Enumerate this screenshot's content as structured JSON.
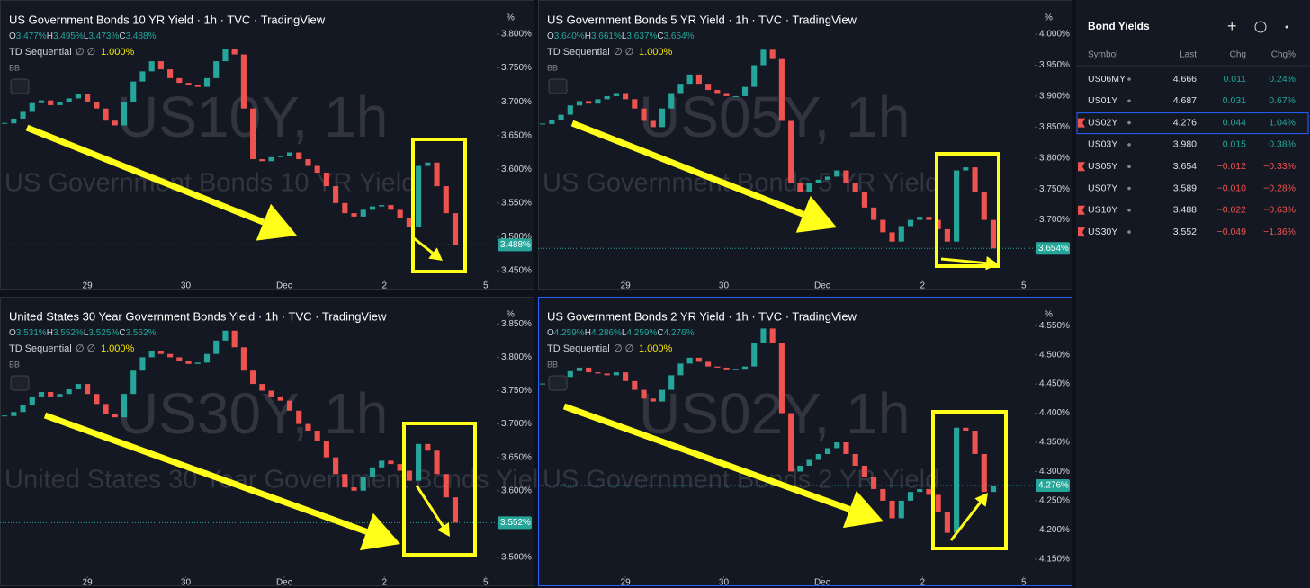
{
  "chart_data": [
    {
      "type": "candlestick",
      "title": "US Government Bonds 10 YR Yield · 1h · TVC · TradingView",
      "ohlc": [
        {
          "key": "O",
          "text": "3.477%"
        },
        {
          "key": "H",
          "text": "3.495%"
        },
        {
          "key": "L",
          "text": "3.473%"
        },
        {
          "key": "C",
          "text": "3.488%"
        }
      ],
      "indicator": "TD Sequential",
      "indicator_value": "1.000%",
      "bb": "BB",
      "unit": "%",
      "watermark": "US10Y, 1h",
      "description": "US Government Bonds 10 YR Yield",
      "last_label": "3.488%",
      "up_color": "#26a69a",
      "down_color": "#ef5350",
      "values": [
        3.668,
        3.675,
        3.685,
        3.698,
        3.702,
        3.695,
        3.7,
        3.705,
        3.712,
        3.7,
        3.69,
        3.672,
        3.665,
        3.7,
        3.73,
        3.745,
        3.76,
        3.748,
        3.735,
        3.728,
        3.725,
        3.722,
        3.735,
        3.76,
        3.778,
        3.77,
        3.69,
        3.615,
        3.612,
        3.618,
        3.62,
        3.625,
        3.615,
        3.605,
        3.595,
        3.575,
        3.55,
        3.535,
        3.53,
        3.54,
        3.545,
        3.547,
        3.54,
        3.528,
        3.515,
        3.605,
        3.61,
        3.575,
        3.535,
        3.488
      ],
      "xlim": [
        -0.5,
        53.5
      ],
      "xticks": [
        {
          "value": 9,
          "label": "29"
        },
        {
          "value": 19.7,
          "label": "30"
        },
        {
          "value": 30.4,
          "label": "Dec"
        },
        {
          "value": 41.3,
          "label": "2"
        },
        {
          "value": 52.3,
          "label": "5"
        }
      ],
      "ylim": [
        3.438,
        3.832
      ],
      "yticks": [
        {
          "value": 3.45,
          "label": "3.450%"
        },
        {
          "value": 3.5,
          "label": "3.500%"
        },
        {
          "value": 3.55,
          "label": "3.550%"
        },
        {
          "value": 3.6,
          "label": "3.600%"
        },
        {
          "value": 3.65,
          "label": "3.650%"
        },
        {
          "value": 3.7,
          "label": "3.700%"
        },
        {
          "value": 3.75,
          "label": "3.750%"
        },
        {
          "value": 3.8,
          "label": "3.800%"
        }
      ]
    },
    {
      "type": "candlestick",
      "title": "US Government Bonds 5 YR Yield · 1h · TVC · TradingView",
      "ohlc": [
        {
          "key": "O",
          "text": "3.640%"
        },
        {
          "key": "H",
          "text": "3.661%"
        },
        {
          "key": "L",
          "text": "3.637%"
        },
        {
          "key": "C",
          "text": "3.654%"
        }
      ],
      "indicator": "TD Sequential",
      "indicator_value": "1.000%",
      "bb": "BB",
      "unit": "%",
      "watermark": "US05Y, 1h",
      "description": "US Government Bonds 5 YR Yield",
      "last_label": "3.654%",
      "up_color": "#26a69a",
      "down_color": "#ef5350",
      "values": [
        3.855,
        3.862,
        3.87,
        3.885,
        3.892,
        3.888,
        3.895,
        3.9,
        3.905,
        3.895,
        3.88,
        3.86,
        3.85,
        3.88,
        3.905,
        3.92,
        3.935,
        3.92,
        3.91,
        3.905,
        3.9,
        3.9,
        3.915,
        3.95,
        3.975,
        3.96,
        3.86,
        3.76,
        3.745,
        3.76,
        3.765,
        3.77,
        3.78,
        3.76,
        3.745,
        3.72,
        3.7,
        3.68,
        3.665,
        3.69,
        3.7,
        3.705,
        3.7,
        3.685,
        3.665,
        3.78,
        3.785,
        3.745,
        3.7,
        3.654
      ],
      "xlim": [
        -0.5,
        53.5
      ],
      "xticks": [
        {
          "value": 9,
          "label": "29"
        },
        {
          "value": 19.7,
          "label": "30"
        },
        {
          "value": 30.4,
          "label": "Dec"
        },
        {
          "value": 41.3,
          "label": "2"
        },
        {
          "value": 52.3,
          "label": "5"
        }
      ],
      "ylim": [
        3.605,
        4.035
      ],
      "yticks": [
        {
          "value": 3.65,
          "label": "3.650%"
        },
        {
          "value": 3.7,
          "label": "3.700%"
        },
        {
          "value": 3.75,
          "label": "3.750%"
        },
        {
          "value": 3.8,
          "label": "3.800%"
        },
        {
          "value": 3.85,
          "label": "3.850%"
        },
        {
          "value": 3.9,
          "label": "3.900%"
        },
        {
          "value": 3.95,
          "label": "3.950%"
        },
        {
          "value": 4,
          "label": "4.000%"
        }
      ]
    },
    {
      "type": "candlestick",
      "title": "United States 30 Year Government Bonds Yield · 1h · TVC · TradingView",
      "ohlc": [
        {
          "key": "O",
          "text": "3.531%"
        },
        {
          "key": "H",
          "text": "3.552%"
        },
        {
          "key": "L",
          "text": "3.525%"
        },
        {
          "key": "C",
          "text": "3.552%"
        }
      ],
      "indicator": "TD Sequential",
      "indicator_value": "1.000%",
      "bb": "BB",
      "unit": "%",
      "watermark": "US30Y, 1h",
      "description": "United States 30 Year Government Bonds Yield",
      "last_label": "3.552%",
      "up_color": "#26a69a",
      "down_color": "#ef5350",
      "values": [
        3.712,
        3.718,
        3.728,
        3.74,
        3.748,
        3.74,
        3.745,
        3.752,
        3.76,
        3.745,
        3.73,
        3.715,
        3.71,
        3.745,
        3.78,
        3.8,
        3.81,
        3.805,
        3.8,
        3.795,
        3.79,
        3.792,
        3.805,
        3.825,
        3.84,
        3.815,
        3.78,
        3.76,
        3.75,
        3.74,
        3.735,
        3.72,
        3.7,
        3.69,
        3.675,
        3.65,
        3.625,
        3.605,
        3.6,
        3.62,
        3.635,
        3.645,
        3.64,
        3.63,
        3.615,
        3.67,
        3.66,
        3.625,
        3.59,
        3.552
      ],
      "xlim": [
        -0.5,
        53.5
      ],
      "xticks": [
        {
          "value": 9,
          "label": "29"
        },
        {
          "value": 19.7,
          "label": "30"
        },
        {
          "value": 30.4,
          "label": "Dec"
        },
        {
          "value": 41.3,
          "label": "2"
        },
        {
          "value": 52.3,
          "label": "5"
        }
      ],
      "ylim": [
        3.473,
        3.872
      ],
      "yticks": [
        {
          "value": 3.5,
          "label": "3.500%"
        },
        {
          "value": 3.55,
          "label": "3.550%"
        },
        {
          "value": 3.6,
          "label": "3.600%"
        },
        {
          "value": 3.65,
          "label": "3.650%"
        },
        {
          "value": 3.7,
          "label": "3.700%"
        },
        {
          "value": 3.75,
          "label": "3.750%"
        },
        {
          "value": 3.8,
          "label": "3.800%"
        },
        {
          "value": 3.85,
          "label": "3.850%"
        }
      ]
    },
    {
      "type": "candlestick",
      "title": "US Government Bonds 2 YR Yield · 1h · TVC · TradingView",
      "ohlc": [
        {
          "key": "O",
          "text": "4.259%"
        },
        {
          "key": "H",
          "text": "4.286%"
        },
        {
          "key": "L",
          "text": "4.259%"
        },
        {
          "key": "C",
          "text": "4.276%"
        }
      ],
      "indicator": "TD Sequential",
      "indicator_value": "1.000%",
      "bb": "BB",
      "unit": "%",
      "watermark": "US02Y, 1h",
      "description": "US Government Bonds 2 YR Yield",
      "last_label": "4.276%",
      "up_color": "#26a69a",
      "down_color": "#ef5350",
      "values": [
        4.45,
        4.455,
        4.462,
        4.472,
        4.478,
        4.47,
        4.468,
        4.465,
        4.47,
        4.455,
        4.44,
        4.425,
        4.42,
        4.44,
        4.465,
        4.485,
        4.495,
        4.488,
        4.48,
        4.478,
        4.475,
        4.476,
        4.48,
        4.52,
        4.545,
        4.52,
        4.4,
        4.3,
        4.31,
        4.32,
        4.33,
        4.34,
        4.35,
        4.33,
        4.31,
        4.29,
        4.27,
        4.25,
        4.22,
        4.25,
        4.265,
        4.27,
        4.26,
        4.23,
        4.195,
        4.375,
        4.37,
        4.33,
        4.265,
        4.276
      ],
      "xlim": [
        -0.5,
        53.5
      ],
      "xticks": [
        {
          "value": 9,
          "label": "29"
        },
        {
          "value": 19.7,
          "label": "30"
        },
        {
          "value": 30.4,
          "label": "Dec"
        },
        {
          "value": 41.3,
          "label": "2"
        },
        {
          "value": 52.3,
          "label": "5"
        }
      ],
      "ylim": [
        4.122,
        4.578
      ],
      "yticks": [
        {
          "value": 4.15,
          "label": "4.150%"
        },
        {
          "value": 4.2,
          "label": "4.200%"
        },
        {
          "value": 4.25,
          "label": "4.250%"
        },
        {
          "value": 4.3,
          "label": "4.300%"
        },
        {
          "value": 4.35,
          "label": "4.350%"
        },
        {
          "value": 4.4,
          "label": "4.400%"
        },
        {
          "value": 4.45,
          "label": "4.450%"
        },
        {
          "value": 4.5,
          "label": "4.500%"
        },
        {
          "value": 4.55,
          "label": "4.550%"
        }
      ]
    }
  ],
  "watchlist": {
    "title": "Bond Yields",
    "columns": [
      "Symbol",
      "Last",
      "Chg",
      "Chg%"
    ],
    "rows": [
      [
        "US06MY",
        "4.666",
        "0.011",
        "0.24%"
      ],
      [
        "US01Y",
        "4.687",
        "0.031",
        "0.67%"
      ],
      [
        "US02Y",
        "4.276",
        "0.044",
        "1.04%"
      ],
      [
        "US03Y",
        "3.980",
        "0.015",
        "0.38%"
      ],
      [
        "US05Y",
        "3.654",
        "−0.012",
        "−0.33%"
      ],
      [
        "US07Y",
        "3.589",
        "−0.010",
        "−0.28%"
      ],
      [
        "US10Y",
        "3.488",
        "−0.022",
        "−0.63%"
      ],
      [
        "US30Y",
        "3.552",
        "−0.049",
        "−1.36%"
      ]
    ]
  }
}
